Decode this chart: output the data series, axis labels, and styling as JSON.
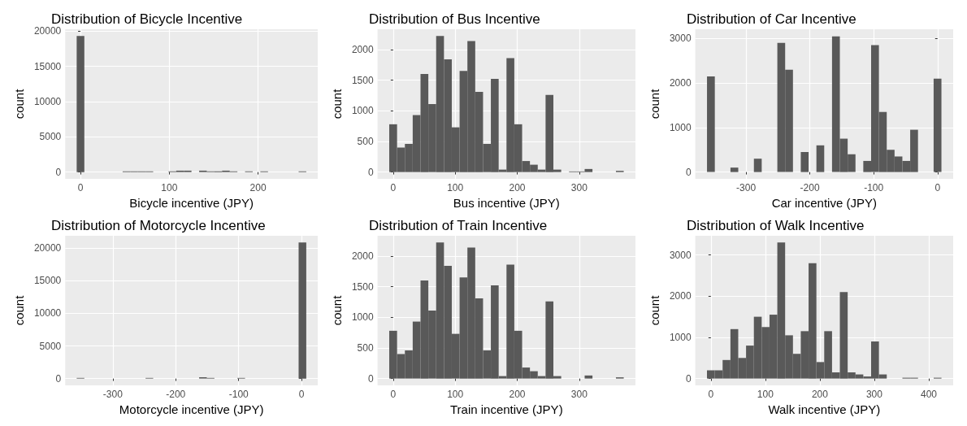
{
  "chart_data": [
    {
      "type": "histogram",
      "title": "Distribution of Bicycle Incentive",
      "xlabel": "Bicycle incentive (JPY)",
      "ylabel": "count",
      "color": "#595959",
      "grid": true,
      "bins": [
        -4.3,
        4.32,
        12.94,
        21.56,
        30.18,
        38.8,
        47.42,
        56.04,
        64.66,
        73.28,
        81.9,
        90.52,
        99.14,
        107.76,
        116.38,
        125,
        133.62,
        142.24,
        150.86,
        159.48,
        168.1,
        176.72,
        185.34,
        193.96,
        202.58,
        211.2,
        219.82,
        228.44,
        237.06,
        245.68,
        254.3
      ],
      "values": [
        19300,
        0,
        0,
        0,
        0,
        0,
        100,
        100,
        100,
        100,
        0,
        0,
        100,
        200,
        200,
        0,
        200,
        100,
        100,
        200,
        100,
        0,
        100,
        0,
        100,
        0,
        0,
        0,
        0,
        100
      ],
      "xlim": [
        -17.2,
        267.2
      ],
      "xticks": [
        0,
        100,
        200
      ],
      "ylim": [
        -965,
        20265
      ],
      "yticks": [
        0,
        5000,
        10000,
        15000,
        20000
      ]
    },
    {
      "type": "histogram",
      "title": "Distribution of Bus Incentive",
      "xlabel": "Bus incentive (JPY)",
      "ylabel": "count",
      "color": "#595959",
      "grid": true,
      "bins": [
        -6.3,
        6.3,
        18.9,
        31.5,
        44.1,
        56.7,
        69.3,
        81.9,
        94.5,
        107.1,
        119.7,
        132.3,
        144.9,
        157.5,
        170.1,
        182.7,
        195.3,
        207.9,
        220.5,
        233.1,
        245.7,
        258.3,
        270.9,
        283.5,
        296.1,
        308.7,
        321.3,
        333.9,
        346.5,
        359.1,
        371.7
      ],
      "values": [
        780,
        400,
        460,
        930,
        1600,
        1110,
        2220,
        1840,
        730,
        1650,
        2140,
        1310,
        460,
        1520,
        40,
        1860,
        780,
        180,
        120,
        40,
        1260,
        40,
        0,
        10,
        10,
        50,
        0,
        0,
        0,
        20
      ],
      "xlim": [
        -25.2,
        390.6
      ],
      "xticks": [
        0,
        100,
        200,
        300
      ],
      "ylim": [
        -111,
        2331
      ],
      "yticks": [
        0,
        500,
        1000,
        1500,
        2000
      ]
    },
    {
      "type": "histogram",
      "title": "Distribution of Car Incentive",
      "xlabel": "Car incentive (JPY)",
      "ylabel": "count",
      "color": "#595959",
      "grid": true,
      "bins": [
        -361.1,
        -348.86,
        -336.62,
        -324.38,
        -312.14,
        -299.9,
        -287.66,
        -275.42,
        -263.18,
        -250.94,
        -238.7,
        -226.46,
        -214.22,
        -201.98,
        -189.74,
        -177.5,
        -165.26,
        -153.02,
        -140.78,
        -128.54,
        -116.3,
        -104.06,
        -91.82,
        -79.58,
        -67.34,
        -55.1,
        -42.86,
        -30.62,
        -18.38,
        -6.14,
        6.1
      ],
      "values": [
        2150,
        0,
        0,
        100,
        0,
        0,
        300,
        0,
        0,
        2900,
        2300,
        0,
        450,
        0,
        600,
        0,
        3050,
        750,
        400,
        0,
        250,
        2850,
        1350,
        500,
        350,
        250,
        950,
        0,
        0,
        2100
      ],
      "xlim": [
        -379.5,
        24.5
      ],
      "xticks": [
        -300,
        -200,
        -100,
        0
      ],
      "ylim": [
        -153,
        3208
      ],
      "yticks": [
        0,
        1000,
        2000,
        3000
      ]
    },
    {
      "type": "histogram",
      "title": "Distribution of Motorcycle Incentive",
      "xlabel": "Motorcycle incentive (JPY)",
      "ylabel": "count",
      "color": "#595959",
      "grid": true,
      "bins": [
        -357.4,
        -345.24,
        -333.08,
        -320.92,
        -308.76,
        -296.6,
        -284.44,
        -272.28,
        -260.12,
        -247.96,
        -235.8,
        -223.64,
        -211.48,
        -199.32,
        -187.16,
        -175,
        -162.84,
        -150.68,
        -138.52,
        -126.36,
        -114.2,
        -102.04,
        -89.88,
        -77.72,
        -65.56,
        -53.4,
        -41.24,
        -29.08,
        -16.92,
        -4.76,
        7.4
      ],
      "values": [
        100,
        0,
        0,
        0,
        0,
        0,
        0,
        0,
        0,
        100,
        0,
        0,
        0,
        0,
        0,
        0,
        200,
        100,
        0,
        0,
        0,
        100,
        0,
        0,
        0,
        0,
        0,
        0,
        0,
        20900
      ],
      "xlim": [
        -375.6,
        25.6
      ],
      "xticks": [
        -300,
        -200,
        -100,
        0
      ],
      "ylim": [
        -1044,
        21914
      ],
      "yticks": [
        0,
        5000,
        10000,
        15000,
        20000
      ]
    },
    {
      "type": "histogram",
      "title": "Distribution of Train Incentive",
      "xlabel": "Train incentive (JPY)",
      "ylabel": "count",
      "color": "#595959",
      "grid": true,
      "bins": [
        -6.3,
        6.3,
        18.9,
        31.5,
        44.1,
        56.7,
        69.3,
        81.9,
        94.5,
        107.1,
        119.7,
        132.3,
        144.9,
        157.5,
        170.1,
        182.7,
        195.3,
        207.9,
        220.5,
        233.1,
        245.7,
        258.3,
        270.9,
        283.5,
        296.1,
        308.7,
        321.3,
        333.9,
        346.5,
        359.1,
        371.7
      ],
      "values": [
        780,
        400,
        460,
        930,
        1600,
        1110,
        2220,
        1840,
        730,
        1650,
        2140,
        1310,
        460,
        1520,
        40,
        1860,
        780,
        180,
        120,
        40,
        1260,
        40,
        0,
        0,
        0,
        50,
        0,
        0,
        0,
        20
      ],
      "xlim": [
        -25.2,
        390.6
      ],
      "xticks": [
        0,
        100,
        200,
        300
      ],
      "ylim": [
        -111,
        2331
      ],
      "yticks": [
        0,
        500,
        1000,
        1500,
        2000
      ]
    },
    {
      "type": "histogram",
      "title": "Distribution of Walk Incentive",
      "xlabel": "Walk incentive (JPY)",
      "ylabel": "count",
      "color": "#595959",
      "grid": true,
      "bins": [
        -7.2,
        7.15,
        21.5,
        35.85,
        50.2,
        64.55,
        78.9,
        93.25,
        107.6,
        121.95,
        136.3,
        150.65,
        165,
        179.35,
        193.7,
        208.05,
        222.4,
        236.75,
        251.1,
        265.45,
        279.8,
        294.15,
        308.5,
        322.85,
        337.2,
        351.55,
        365.9,
        380.25,
        394.6,
        408.95,
        423.3
      ],
      "values": [
        200,
        200,
        450,
        1200,
        500,
        800,
        1500,
        1250,
        1550,
        3300,
        1050,
        600,
        1150,
        2800,
        400,
        1150,
        150,
        2100,
        150,
        100,
        50,
        900,
        100,
        0,
        0,
        20,
        20,
        0,
        0,
        20
      ],
      "xlim": [
        -28.7,
        444.8
      ],
      "xticks": [
        0,
        100,
        200,
        300,
        400
      ],
      "ylim": [
        -165,
        3465
      ],
      "yticks": [
        0,
        1000,
        2000,
        3000
      ]
    }
  ]
}
